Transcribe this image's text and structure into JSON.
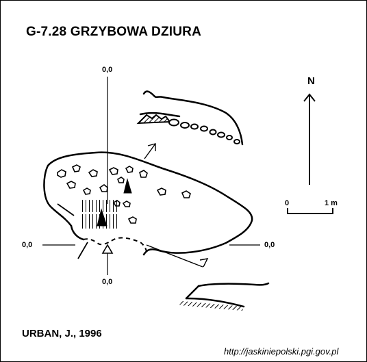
{
  "title": "G-7.28  GRZYBOWA DZIURA",
  "author": "URBAN, J., 1996",
  "source": "http://jaskiniepolski.pgi.gov.pl",
  "north_label": "N",
  "scale": {
    "start": "0",
    "end": "1 m"
  },
  "section_labels": {
    "top": "0,0",
    "left": "0,0",
    "right": "0,0",
    "bottom": "0,0"
  }
}
